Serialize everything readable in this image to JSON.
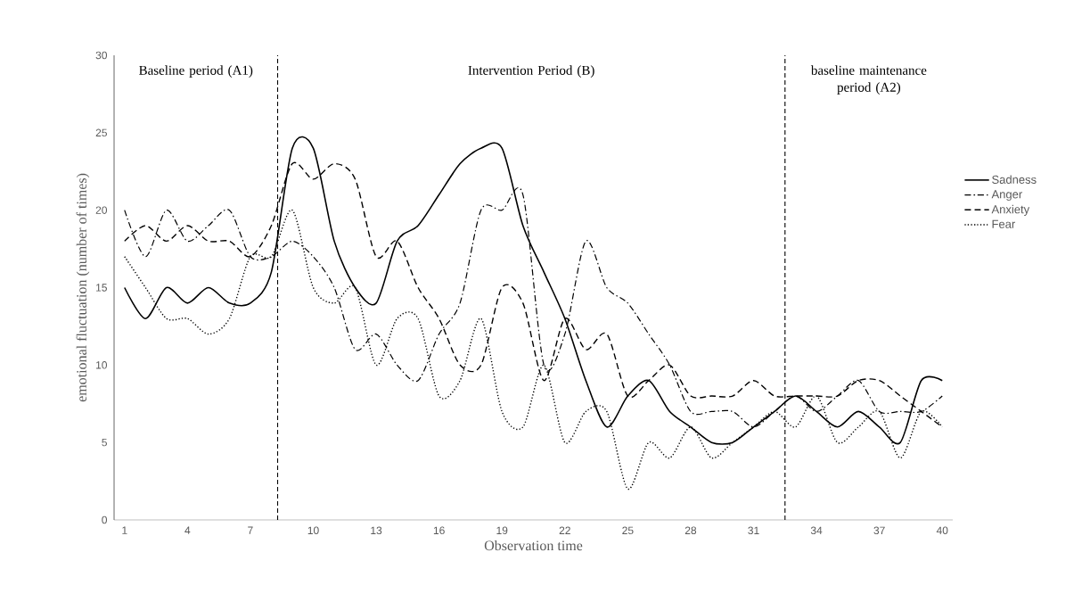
{
  "chart_data": {
    "type": "line",
    "xlabel": "Observation time",
    "ylabel": "emotional fluctuation (number of times)",
    "x": [
      1,
      2,
      3,
      4,
      5,
      6,
      7,
      8,
      9,
      10,
      11,
      12,
      13,
      14,
      15,
      16,
      17,
      18,
      19,
      20,
      21,
      22,
      23,
      24,
      25,
      26,
      27,
      28,
      29,
      30,
      31,
      32,
      33,
      34,
      35,
      36,
      37,
      38,
      39,
      40
    ],
    "series": [
      {
        "name": "Sadness",
        "color": "#000000",
        "line_style": "solid",
        "values": [
          15,
          13,
          15,
          14,
          15,
          14,
          14,
          16,
          24,
          24,
          18,
          15,
          14,
          18,
          19,
          21,
          23,
          24,
          24,
          19,
          16,
          13,
          9,
          6,
          8,
          9,
          7,
          6,
          5,
          5,
          6,
          7,
          8,
          7,
          6,
          7,
          6,
          5,
          9,
          9
        ]
      },
      {
        "name": "Anger",
        "color": "#000000",
        "line_style": "dashdot",
        "values": [
          20,
          17,
          20,
          18,
          19,
          20,
          17,
          17,
          18,
          17,
          15,
          11,
          12,
          10,
          9,
          12,
          14,
          20,
          20,
          21,
          10,
          12,
          18,
          15,
          14,
          12,
          10,
          7,
          7,
          7,
          6,
          7,
          8,
          7,
          8,
          9,
          7,
          7,
          7,
          8
        ]
      },
      {
        "name": "Anxiety",
        "color": "#000000",
        "line_style": "dashed",
        "values": [
          18,
          19,
          18,
          19,
          18,
          18,
          17,
          19,
          23,
          22,
          23,
          22,
          17,
          18,
          15,
          13,
          10,
          10,
          15,
          14,
          9,
          13,
          11,
          12,
          8,
          9,
          10,
          8,
          8,
          8,
          9,
          8,
          8,
          8,
          8,
          9,
          9,
          8,
          7,
          6
        ]
      },
      {
        "name": "Fear",
        "color": "#000000",
        "line_style": "dotted",
        "values": [
          17,
          15,
          13,
          13,
          12,
          13,
          17,
          17,
          20,
          15,
          14,
          15,
          10,
          13,
          13,
          8,
          9,
          13,
          7,
          6,
          10,
          5,
          7,
          7,
          2,
          5,
          4,
          6,
          4,
          5,
          6,
          7,
          6,
          8,
          5,
          6,
          7,
          4,
          7,
          6
        ]
      }
    ],
    "xlim": [
      0.5,
      40.5
    ],
    "ylim": [
      0,
      30
    ],
    "xticks": [
      1,
      4,
      7,
      10,
      13,
      16,
      19,
      22,
      25,
      28,
      31,
      34,
      37,
      40
    ],
    "yticks": [
      0,
      5,
      10,
      15,
      20,
      25,
      30
    ],
    "ref_lines": [
      {
        "axis": "x",
        "value": 8.3,
        "line_style": "dashed"
      },
      {
        "axis": "x",
        "value": 32.5,
        "line_style": "dashed"
      }
    ],
    "annotations": [
      "Baseline period (A1)",
      "Intervention Period (B)",
      "baseline maintenance period (A2)"
    ],
    "legend": "right",
    "grid": false,
    "marker": "none"
  }
}
